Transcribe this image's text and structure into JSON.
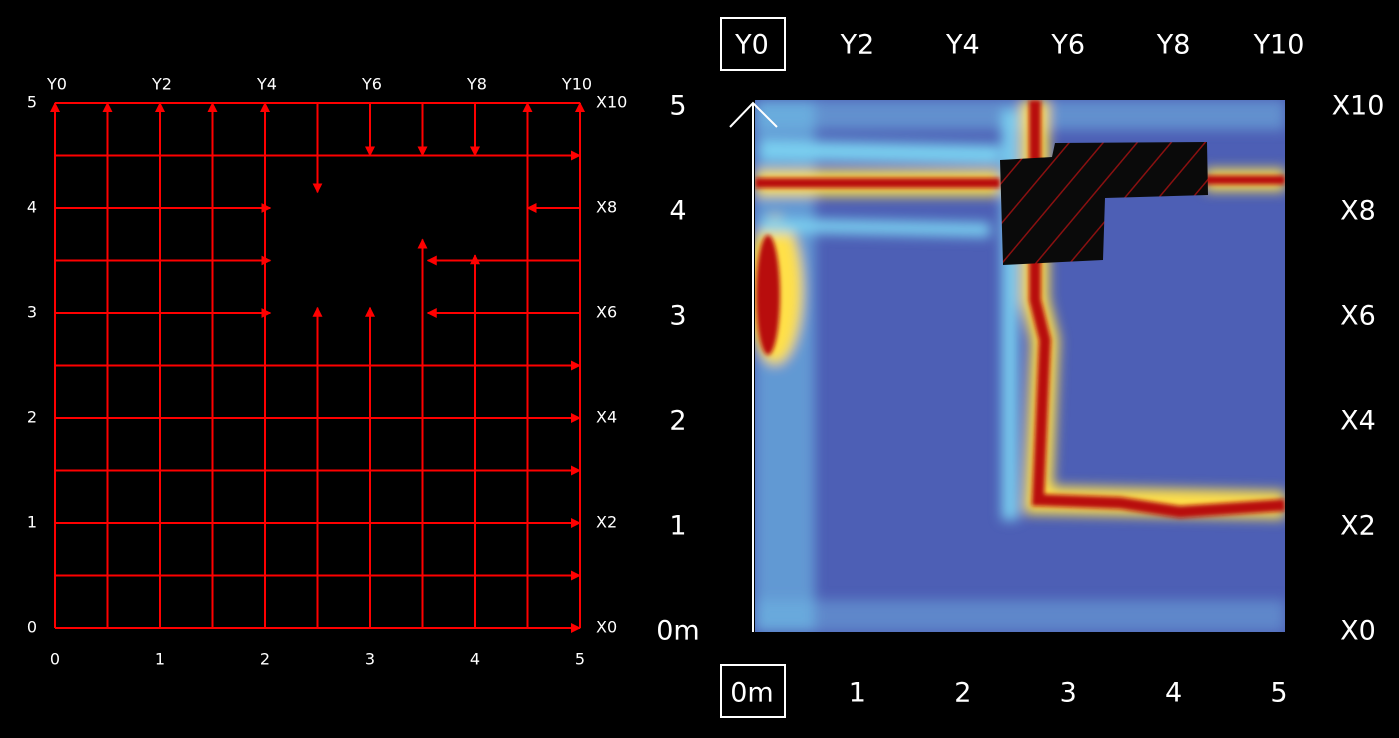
{
  "left_panel": {
    "top_labels": [
      "Y0",
      "Y2",
      "Y4",
      "Y6",
      "Y8",
      "Y10"
    ],
    "right_labels": [
      "X10",
      "X8",
      "X6",
      "X4",
      "X2",
      "X0"
    ],
    "bottom_labels": [
      "0",
      "1",
      "2",
      "3",
      "4",
      "5"
    ],
    "left_labels": [
      "5",
      "4",
      "3",
      "2",
      "1",
      "0"
    ]
  },
  "right_panel": {
    "top_labels": [
      "Y0",
      "Y2",
      "Y4",
      "Y6",
      "Y8",
      "Y10"
    ],
    "right_labels": [
      "X10",
      "X8",
      "X6",
      "X4",
      "X2",
      "X0"
    ],
    "bottom_labels": [
      "0m",
      "1",
      "2",
      "3",
      "4",
      "5"
    ],
    "left_labels": [
      "5",
      "4",
      "3",
      "2",
      "1",
      "0m"
    ]
  }
}
